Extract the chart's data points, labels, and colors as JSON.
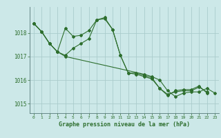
{
  "title": "Graphe pression niveau de la mer (hPa)",
  "bg_color": "#cce8e8",
  "grid_color": "#aacccc",
  "line_color": "#2d6e2d",
  "xlim": [
    -0.5,
    23.5
  ],
  "ylim": [
    1014.6,
    1019.1
  ],
  "yticks": [
    1015,
    1016,
    1017,
    1018
  ],
  "xticks": [
    0,
    1,
    2,
    3,
    4,
    5,
    6,
    7,
    8,
    9,
    10,
    11,
    12,
    13,
    14,
    15,
    16,
    17,
    18,
    19,
    20,
    21,
    22,
    23
  ],
  "series1": [
    [
      0,
      1018.4
    ],
    [
      1,
      1018.05
    ],
    [
      2,
      1017.55
    ],
    [
      3,
      1017.2
    ],
    [
      4,
      1018.2
    ],
    [
      5,
      1017.85
    ],
    [
      6,
      1017.9
    ],
    [
      7,
      1018.1
    ],
    [
      8,
      1018.55
    ],
    [
      9,
      1018.65
    ],
    [
      10,
      1018.15
    ],
    [
      11,
      1017.05
    ],
    [
      12,
      1016.3
    ],
    [
      13,
      1016.3
    ],
    [
      14,
      1016.2
    ],
    [
      15,
      1016.1
    ],
    [
      16,
      1015.65
    ],
    [
      17,
      1015.35
    ],
    [
      18,
      1015.55
    ],
    [
      19,
      1015.6
    ],
    [
      20,
      1015.6
    ],
    [
      21,
      1015.75
    ],
    [
      22,
      1015.45
    ]
  ],
  "series2": [
    [
      0,
      1018.4
    ],
    [
      1,
      1018.05
    ],
    [
      2,
      1017.55
    ],
    [
      3,
      1017.2
    ],
    [
      4,
      1017.05
    ],
    [
      5,
      1017.35
    ],
    [
      6,
      1017.55
    ],
    [
      7,
      1017.75
    ],
    [
      8,
      1018.55
    ],
    [
      9,
      1018.6
    ],
    [
      10,
      1018.15
    ],
    [
      11,
      1017.05
    ],
    [
      12,
      1016.3
    ],
    [
      13,
      1016.25
    ],
    [
      14,
      1016.15
    ],
    [
      15,
      1016.05
    ],
    [
      16,
      1015.65
    ],
    [
      17,
      1015.4
    ],
    [
      18,
      1015.5
    ],
    [
      19,
      1015.55
    ],
    [
      20,
      1015.55
    ],
    [
      21,
      1015.7
    ],
    [
      22,
      1015.5
    ]
  ],
  "series3": [
    [
      0,
      1018.4
    ],
    [
      1,
      1018.05
    ],
    [
      2,
      1017.55
    ],
    [
      3,
      1017.2
    ],
    [
      4,
      1017.0
    ],
    [
      14,
      1016.25
    ],
    [
      15,
      1016.15
    ],
    [
      16,
      1016.0
    ],
    [
      17,
      1015.55
    ],
    [
      18,
      1015.3
    ],
    [
      19,
      1015.45
    ],
    [
      20,
      1015.5
    ],
    [
      21,
      1015.5
    ],
    [
      22,
      1015.65
    ],
    [
      23,
      1015.45
    ]
  ]
}
